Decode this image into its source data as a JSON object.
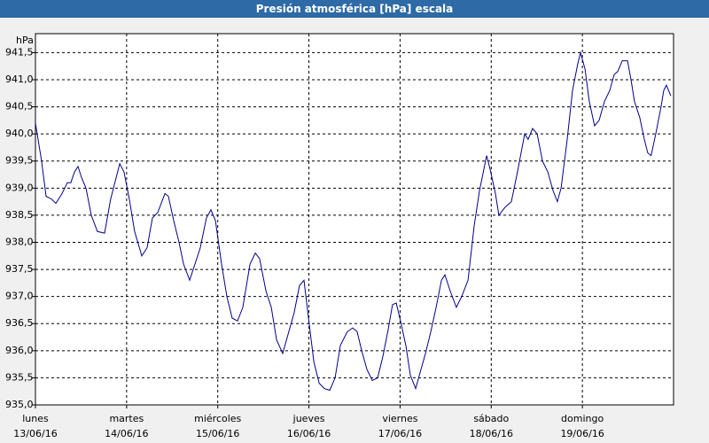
{
  "chart_data": {
    "type": "line",
    "title": "Presión atmosférica [hPa] escala",
    "ylabel": "hPa",
    "xlim": [
      0,
      168
    ],
    "ylim": [
      935,
      941.85
    ],
    "grid": true,
    "color": "#00008b",
    "xticks": [
      {
        "value": 0,
        "label": [
          "lunes",
          "13/06/16"
        ]
      },
      {
        "value": 24,
        "label": [
          "martes",
          "14/06/16"
        ]
      },
      {
        "value": 48,
        "label": [
          "miércoles",
          "15/06/16"
        ]
      },
      {
        "value": 72,
        "label": [
          "jueves",
          "16/06/16"
        ]
      },
      {
        "value": 96,
        "label": [
          "viernes",
          "17/06/16"
        ]
      },
      {
        "value": 120,
        "label": [
          "sábado",
          "18/06/16"
        ]
      },
      {
        "value": 144,
        "label": [
          "domingo",
          "19/06/16"
        ]
      }
    ],
    "yticks": [
      {
        "value": 935,
        "label": "935,0"
      },
      {
        "value": 935.5,
        "label": "935,5"
      },
      {
        "value": 936,
        "label": "936,0"
      },
      {
        "value": 936.5,
        "label": "936,5"
      },
      {
        "value": 937,
        "label": "937,0"
      },
      {
        "value": 937.5,
        "label": "937,5"
      },
      {
        "value": 938,
        "label": "938,0"
      },
      {
        "value": 938.5,
        "label": "938,5"
      },
      {
        "value": 939,
        "label": "939,0"
      },
      {
        "value": 939.5,
        "label": "939,5"
      },
      {
        "value": 940,
        "label": "940,0"
      },
      {
        "value": 940.5,
        "label": "940,5"
      },
      {
        "value": 941,
        "label": "941,0"
      },
      {
        "value": 941.5,
        "label": "941,5"
      }
    ],
    "x": [
      0,
      1.6,
      2.8,
      4.2,
      5.4,
      7,
      8.4,
      9.3,
      10.3,
      11.2,
      12.1,
      13.3,
      14.7,
      16.3,
      18.2,
      19.8,
      22.2,
      23.3,
      24.7,
      26.1,
      28,
      29.4,
      30.8,
      32.2,
      34.1,
      35,
      36.4,
      37.8,
      39,
      40.6,
      42,
      43.4,
      45,
      46.2,
      47.4,
      49,
      50.4,
      51.8,
      53.2,
      54.6,
      56.5,
      57.9,
      59,
      60.7,
      62.1,
      63.5,
      65.1,
      66.5,
      68.1,
      69.5,
      70.7,
      71.9,
      73.3,
      74.7,
      76.1,
      77.5,
      78.9,
      80.3,
      82.1,
      83.5,
      84.7,
      85.9,
      87.3,
      88.7,
      90.1,
      91.5,
      92.9,
      94,
      95,
      96.1,
      97.5,
      98.7,
      100.1,
      101.3,
      102.7,
      104.1,
      105.5,
      106.9,
      107.8,
      109.2,
      110.8,
      112.2,
      113.9,
      115.5,
      116.9,
      118.8,
      119.7,
      121.1,
      122,
      123.7,
      125.3,
      126.9,
      128.8,
      129.7,
      130.9,
      132.1,
      133.5,
      134.9,
      136.3,
      137.4,
      138.4,
      140,
      141.4,
      142.8,
      143.5,
      144.7,
      145.8,
      147.2,
      148.4,
      149.8,
      151.2,
      152.4,
      153.3,
      154.5,
      155.9,
      156.8,
      157.7,
      159.1,
      160.3,
      161.2,
      162.1,
      163.3,
      164.7,
      165.4,
      166.1,
      167.3
    ],
    "values": [
      940.2,
      939.5,
      938.85,
      938.8,
      938.72,
      938.9,
      939.1,
      939.1,
      939.3,
      939.4,
      939.2,
      939.0,
      938.5,
      938.2,
      938.17,
      938.8,
      939.45,
      939.3,
      938.8,
      938.2,
      937.75,
      937.9,
      938.45,
      938.55,
      938.9,
      938.85,
      938.4,
      938.0,
      937.6,
      937.3,
      937.6,
      937.9,
      938.45,
      938.6,
      938.4,
      937.6,
      937.0,
      936.6,
      936.55,
      936.8,
      937.6,
      937.8,
      937.7,
      937.1,
      936.8,
      936.2,
      935.95,
      936.3,
      936.7,
      937.2,
      937.3,
      936.6,
      935.8,
      935.4,
      935.3,
      935.27,
      935.5,
      936.1,
      936.35,
      936.42,
      936.35,
      936.0,
      935.65,
      935.45,
      935.5,
      935.9,
      936.4,
      936.85,
      936.88,
      936.55,
      936.1,
      935.55,
      935.3,
      935.6,
      935.95,
      936.35,
      936.8,
      937.3,
      937.4,
      937.1,
      936.8,
      937.0,
      937.3,
      938.3,
      938.95,
      939.6,
      939.35,
      938.9,
      938.5,
      938.65,
      938.75,
      939.3,
      940.0,
      939.9,
      940.1,
      940.0,
      939.5,
      939.3,
      938.95,
      938.75,
      939.0,
      939.9,
      940.8,
      941.3,
      941.5,
      941.2,
      940.6,
      940.15,
      940.25,
      940.6,
      940.8,
      941.1,
      941.15,
      941.35,
      941.35,
      941.0,
      940.6,
      940.3,
      939.9,
      939.65,
      939.6,
      940.0,
      940.5,
      940.8,
      940.9,
      940.7
    ]
  }
}
